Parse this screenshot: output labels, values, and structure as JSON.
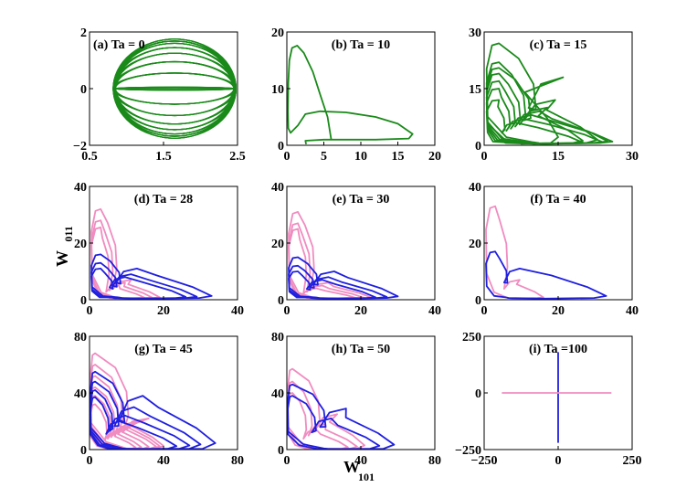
{
  "xlabel": {
    "main": "W",
    "sub": "101"
  },
  "ylabel": {
    "main": "W",
    "sub": "011"
  },
  "colors": {
    "green": "#1a8a1a",
    "blue": "#1f1fe0",
    "pink": "#f08cc0"
  },
  "chart_data": [
    {
      "type": "line",
      "title": "(a) Ta = 0",
      "xlim": [
        0.5,
        2.5
      ],
      "ylim": [
        -2,
        2
      ],
      "xticks": [
        "0.5",
        "1.5",
        "2.5"
      ],
      "xtick_values": [
        0.5,
        1.5,
        2.5
      ],
      "yticks": [
        "−2",
        "0",
        "2"
      ],
      "ytick_values": [
        -2,
        0,
        2
      ],
      "series": [
        {
          "color": "green",
          "shape": "ellipses",
          "cx": 1.65,
          "rx": [
            0.8,
            0.81,
            0.82,
            0.83
          ],
          "ry": [
            0.05,
            0.55,
            0.95,
            1.25,
            1.45,
            1.6,
            1.68,
            1.75
          ]
        }
      ]
    },
    {
      "type": "line",
      "title": "(b) Ta = 10",
      "xlim": [
        0,
        20
      ],
      "ylim": [
        0,
        20
      ],
      "xticks": [
        "0",
        "5",
        "10",
        "15",
        "20"
      ],
      "xtick_values": [
        0,
        5,
        10,
        15,
        20
      ],
      "yticks": [
        "0",
        "10",
        "20"
      ],
      "ytick_values": [
        0,
        10,
        20
      ],
      "series": [
        {
          "color": "green",
          "points": [
            [
              6,
              1
            ],
            [
              5.5,
              5
            ],
            [
              4.5,
              9
            ],
            [
              3.5,
              13
            ],
            [
              2.3,
              16.3
            ],
            [
              1.4,
              17.6
            ],
            [
              0.7,
              17.2
            ],
            [
              0.35,
              15
            ],
            [
              0.2,
              11
            ],
            [
              0.15,
              6
            ],
            [
              0.2,
              3
            ],
            [
              0.5,
              2.2
            ],
            [
              1.5,
              3.5
            ],
            [
              2.5,
              5.5
            ],
            [
              4.5,
              6
            ],
            [
              8,
              5.8
            ],
            [
              12,
              5
            ],
            [
              15,
              3.8
            ],
            [
              17,
              2
            ],
            [
              16.5,
              1.2
            ],
            [
              12,
              1
            ],
            [
              5,
              1
            ],
            [
              2.5,
              0.8
            ],
            [
              2.6,
              0.2
            ]
          ]
        }
      ]
    },
    {
      "type": "line",
      "title": "(c) Ta = 15",
      "xlim": [
        0,
        30
      ],
      "ylim": [
        0,
        30
      ],
      "xticks": [
        "0",
        "15",
        "30"
      ],
      "xtick_values": [
        0,
        15,
        30
      ],
      "yticks": [
        "0",
        "15",
        "30"
      ],
      "ytick_values": [
        0,
        15,
        30
      ],
      "series": [
        {
          "color": "green",
          "shape": "loops",
          "loops": [
            {
              "peak": 27,
              "reach": 15,
              "inner": 10,
              "innerPeak": 18
            },
            {
              "peak": 22,
              "reach": 20,
              "inner": 8,
              "innerPeak": 10
            },
            {
              "peak": 20.5,
              "reach": 23,
              "inner": 9,
              "innerPeak": 12
            },
            {
              "peak": 19,
              "reach": 25,
              "inner": 7,
              "innerPeak": 9
            },
            {
              "peak": 17,
              "reach": 26,
              "inner": 6,
              "innerPeak": 8
            },
            {
              "peak": 15,
              "reach": 24,
              "inner": 5,
              "innerPeak": 7
            },
            {
              "peak": 12,
              "reach": 20,
              "inner": 4,
              "innerPeak": 6
            }
          ]
        }
      ]
    },
    {
      "type": "line",
      "title": "(d) Ta = 28",
      "xlim": [
        0,
        40
      ],
      "ylim": [
        0,
        40
      ],
      "xticks": [
        "0",
        "20",
        "40"
      ],
      "xtick_values": [
        0,
        20,
        40
      ],
      "yticks": [
        "0",
        "20",
        "40"
      ],
      "ytick_values": [
        0,
        20,
        40
      ],
      "series": [
        {
          "color": "pink",
          "shape": "loops",
          "loops": [
            {
              "peak": 32,
              "reach": 19,
              "inner": 7,
              "innerPeak": 7
            },
            {
              "peak": 28,
              "reach": 17,
              "inner": 6,
              "innerPeak": 6
            },
            {
              "peak": 25.5,
              "reach": 15,
              "inner": 5,
              "innerPeak": 5
            }
          ]
        },
        {
          "color": "blue",
          "shape": "loops",
          "loops": [
            {
              "peak": 16,
              "reach": 33,
              "inner": 8,
              "innerPeak": 11
            },
            {
              "peak": 13,
              "reach": 29,
              "inner": 7,
              "innerPeak": 9
            },
            {
              "peak": 11,
              "reach": 26,
              "inner": 6,
              "innerPeak": 8
            }
          ]
        }
      ]
    },
    {
      "type": "line",
      "title": "(e) Ta = 30",
      "xlim": [
        0,
        40
      ],
      "ylim": [
        0,
        40
      ],
      "xticks": [
        "0",
        "20",
        "40"
      ],
      "xtick_values": [
        0,
        20,
        40
      ],
      "yticks": [
        "0",
        "20",
        "40"
      ],
      "ytick_values": [
        0,
        20,
        40
      ],
      "series": [
        {
          "color": "pink",
          "shape": "loops",
          "loops": [
            {
              "peak": 31,
              "reach": 23,
              "inner": 7,
              "innerPeak": 6
            },
            {
              "peak": 27,
              "reach": 21,
              "inner": 6,
              "innerPeak": 5
            },
            {
              "peak": 25,
              "reach": 19,
              "inner": 5,
              "innerPeak": 4
            }
          ]
        },
        {
          "color": "blue",
          "shape": "loops",
          "loops": [
            {
              "peak": 15,
              "reach": 30,
              "inner": 8,
              "innerPeak": 10
            },
            {
              "peak": 12,
              "reach": 27,
              "inner": 7,
              "innerPeak": 8
            },
            {
              "peak": 10,
              "reach": 24,
              "inner": 6,
              "innerPeak": 7
            }
          ]
        }
      ]
    },
    {
      "type": "line",
      "title": "(f) Ta = 40",
      "xlim": [
        0,
        40
      ],
      "ylim": [
        0,
        40
      ],
      "xticks": [
        "0",
        "20",
        "40"
      ],
      "xtick_values": [
        0,
        20,
        40
      ],
      "yticks": [
        "0",
        "20",
        "40"
      ],
      "ytick_values": [
        0,
        20,
        40
      ],
      "series": [
        {
          "color": "pink",
          "shape": "loops",
          "loops": [
            {
              "peak": 33,
              "reach": 16,
              "inner": 6,
              "innerPeak": 7
            }
          ]
        },
        {
          "color": "blue",
          "shape": "loops",
          "loops": [
            {
              "peak": 17,
              "reach": 33,
              "inner": 6,
              "innerPeak": 11
            }
          ]
        }
      ]
    },
    {
      "type": "line",
      "title": "(g) Ta = 45",
      "xlim": [
        0,
        80
      ],
      "ylim": [
        0,
        80
      ],
      "xticks": [
        "0",
        "40",
        "80"
      ],
      "xtick_values": [
        0,
        40,
        80
      ],
      "yticks": [
        "0",
        "40",
        "80"
      ],
      "ytick_values": [
        0,
        40,
        80
      ],
      "series": [
        {
          "color": "pink",
          "shape": "loops",
          "loops": [
            {
              "peak": 68,
              "reach": 40,
              "inner": 20,
              "innerPeak": 22
            },
            {
              "peak": 60,
              "reach": 38,
              "inner": 17,
              "innerPeak": 20
            },
            {
              "peak": 52,
              "reach": 36,
              "inner": 15,
              "innerPeak": 18
            },
            {
              "peak": 44,
              "reach": 32,
              "inner": 13,
              "innerPeak": 16
            },
            {
              "peak": 38,
              "reach": 28,
              "inner": 11,
              "innerPeak": 14
            },
            {
              "peak": 32,
              "reach": 25,
              "inner": 9,
              "innerPeak": 12
            }
          ]
        },
        {
          "color": "blue",
          "shape": "loops",
          "loops": [
            {
              "peak": 55,
              "reach": 68,
              "inner": 18,
              "innerPeak": 38
            },
            {
              "peak": 48,
              "reach": 60,
              "inner": 15,
              "innerPeak": 30
            },
            {
              "peak": 42,
              "reach": 54,
              "inner": 12,
              "innerPeak": 24
            },
            {
              "peak": 37,
              "reach": 47,
              "inner": 10,
              "innerPeak": 20
            }
          ]
        }
      ]
    },
    {
      "type": "line",
      "title": "(h) Ta = 50",
      "xlim": [
        0,
        80
      ],
      "ylim": [
        0,
        80
      ],
      "xticks": [
        "0",
        "40",
        "80"
      ],
      "xtick_values": [
        0,
        40,
        80
      ],
      "yticks": [
        "0",
        "40",
        "80"
      ],
      "ytick_values": [
        0,
        40,
        80
      ],
      "series": [
        {
          "color": "pink",
          "shape": "loops",
          "loops": [
            {
              "peak": 57,
              "reach": 42,
              "inner": 17,
              "innerPeak": 25
            },
            {
              "peak": 48,
              "reach": 38,
              "inner": 13,
              "innerPeak": 18
            },
            {
              "peak": 40,
              "reach": 33,
              "inner": 10,
              "innerPeak": 14
            }
          ]
        },
        {
          "color": "blue",
          "shape": "loops",
          "loops": [
            {
              "peak": 46,
              "reach": 58,
              "inner": 20,
              "innerPeak": 29
            },
            {
              "peak": 38,
              "reach": 50,
              "inner": 15,
              "innerPeak": 22
            }
          ]
        }
      ]
    },
    {
      "type": "line",
      "title": "(i) Ta =100",
      "xlim": [
        -250,
        250
      ],
      "ylim": [
        -250,
        250
      ],
      "xticks": [
        "−250",
        "0",
        "250"
      ],
      "xtick_values": [
        -250,
        0,
        250
      ],
      "yticks": [
        "−250",
        "0",
        "250"
      ],
      "ytick_values": [
        -250,
        0,
        250
      ],
      "series": [
        {
          "color": "blue",
          "points": [
            [
              0,
              180
            ],
            [
              0,
              -220
            ]
          ]
        },
        {
          "color": "pink",
          "points": [
            [
              -190,
              0
            ],
            [
              180,
              0
            ]
          ]
        }
      ]
    }
  ]
}
